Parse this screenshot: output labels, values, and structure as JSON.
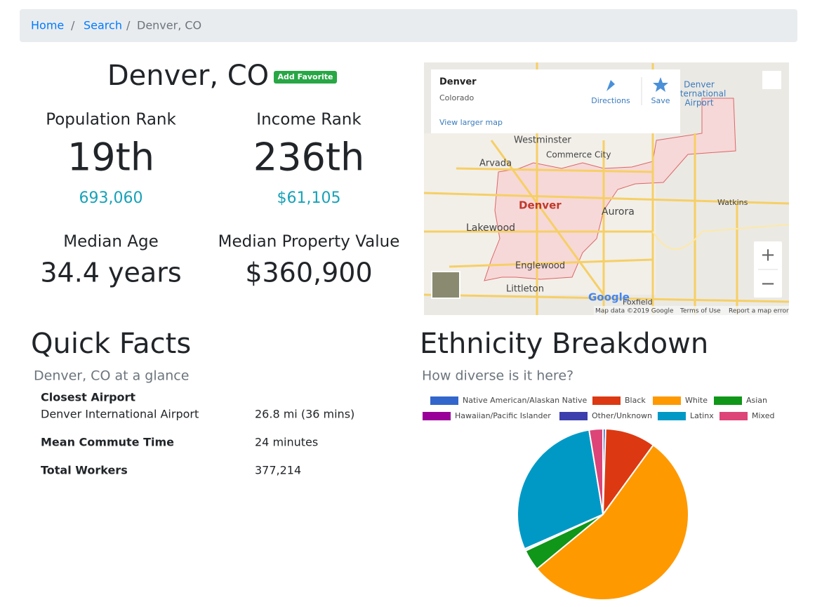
{
  "breadcrumb": [
    "Home",
    "Search",
    "Denver, CO"
  ],
  "header": {
    "title": "Denver, CO",
    "badge": "Add Favorite"
  },
  "stats": [
    {
      "label": "Population Rank",
      "value": "19th",
      "detail": "693,060"
    },
    {
      "label": "Income Rank",
      "value": "236th",
      "detail": "$61,105"
    },
    {
      "label": "Median Age",
      "value": "34.4 years"
    },
    {
      "label": "Median Property Value",
      "value": "$360,900"
    }
  ],
  "map": {
    "card": {
      "title": "Denver",
      "subtitle": "Colorado",
      "directions": "Directions",
      "save": "Save",
      "link": "View larger map"
    },
    "labels": [
      "Westminster",
      "Arvada",
      "Commerce City",
      "Denver",
      "Aurora",
      "Lakewood",
      "Englewood",
      "Littleton",
      "Denver",
      "International",
      "Airport",
      "Watkins",
      "Foxfield"
    ],
    "logo": "Google",
    "footer": [
      "Map data ©2019 Google",
      "Terms of Use",
      "Report a map error"
    ],
    "zoom": [
      "+",
      "−"
    ]
  },
  "quick_facts": {
    "title": "Quick Facts",
    "subtitle": "Denver, CO at a glance",
    "rows": [
      {
        "label": "Closest Airport",
        "detail": "Denver International Airport",
        "value": "26.8 mi (36 mins)"
      },
      {
        "label": "Mean Commute Time",
        "value": "24 minutes"
      },
      {
        "label": "Total Workers",
        "value": "377,214"
      }
    ]
  },
  "chart_data": {
    "type": "pie",
    "title": "Ethnicity Breakdown",
    "subtitle": "How diverse is it here?",
    "categories": [
      "Native American/Alaskan Native",
      "Black",
      "White",
      "Asian",
      "Hawaiian/Pacific Islander",
      "Other/Unknown",
      "Latinx",
      "Mixed"
    ],
    "values": [
      0.5,
      9.5,
      54,
      4,
      0.1,
      0.3,
      29,
      2.6
    ],
    "colors": [
      "#3366cc",
      "#dc3912",
      "#ff9900",
      "#109618",
      "#990099",
      "#3b3eac",
      "#0099c6",
      "#dd4477"
    ]
  }
}
